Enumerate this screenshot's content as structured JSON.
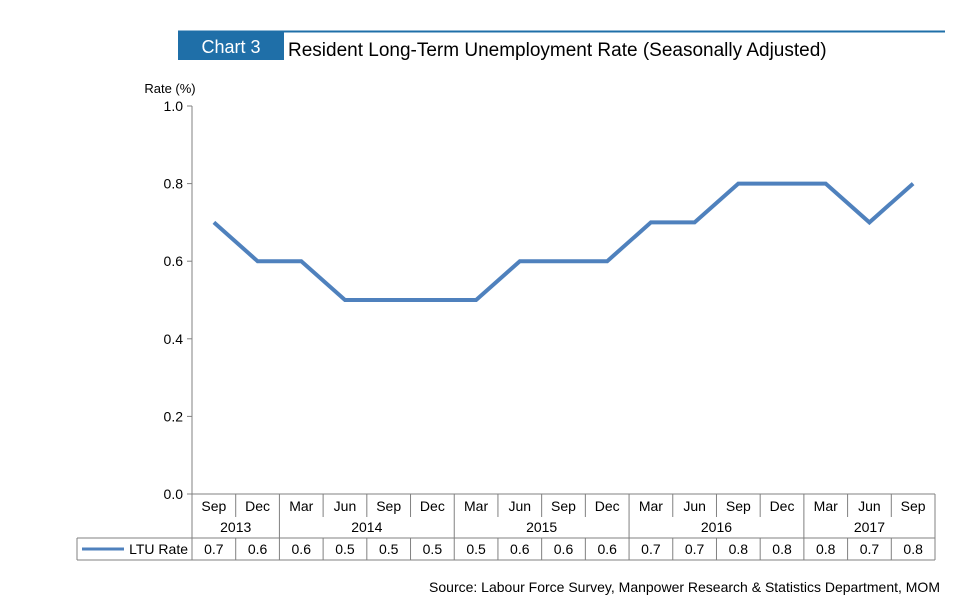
{
  "chart_label": "Chart 3",
  "chart_data": {
    "type": "line",
    "title": "Resident Long-Term Unemployment Rate (Seasonally Adjusted)",
    "ylabel": "Rate (%)",
    "ylim": [
      0.0,
      1.0
    ],
    "yticks": [
      "1.0",
      "0.8",
      "0.6",
      "0.4",
      "0.2",
      "0.0"
    ],
    "months": [
      "Sep",
      "Dec",
      "Mar",
      "Jun",
      "Sep",
      "Dec",
      "Mar",
      "Jun",
      "Sep",
      "Dec",
      "Mar",
      "Jun",
      "Sep",
      "Dec",
      "Mar",
      "Jun",
      "Sep"
    ],
    "years": [
      {
        "label": "2013",
        "span": 2
      },
      {
        "label": "2014",
        "span": 4
      },
      {
        "label": "2015",
        "span": 4
      },
      {
        "label": "2016",
        "span": 4
      },
      {
        "label": "2017",
        "span": 3
      }
    ],
    "series": [
      {
        "name": "LTU Rate",
        "color": "#4f81bd",
        "values": [
          0.7,
          0.6,
          0.6,
          0.5,
          0.5,
          0.5,
          0.5,
          0.6,
          0.6,
          0.6,
          0.7,
          0.7,
          0.8,
          0.8,
          0.8,
          0.7,
          0.8
        ],
        "labels": [
          "0.7",
          "0.6",
          "0.6",
          "0.5",
          "0.5",
          "0.5",
          "0.5",
          "0.6",
          "0.6",
          "0.6",
          "0.7",
          "0.7",
          "0.8",
          "0.8",
          "0.8",
          "0.7",
          "0.8"
        ]
      }
    ],
    "grid": false,
    "legend": "data-table"
  },
  "source": "Source: Labour Force Survey, Manpower Research & Statistics Department, MOM",
  "colors": {
    "accent": "#1f6fa8",
    "line": "#4f81bd"
  }
}
